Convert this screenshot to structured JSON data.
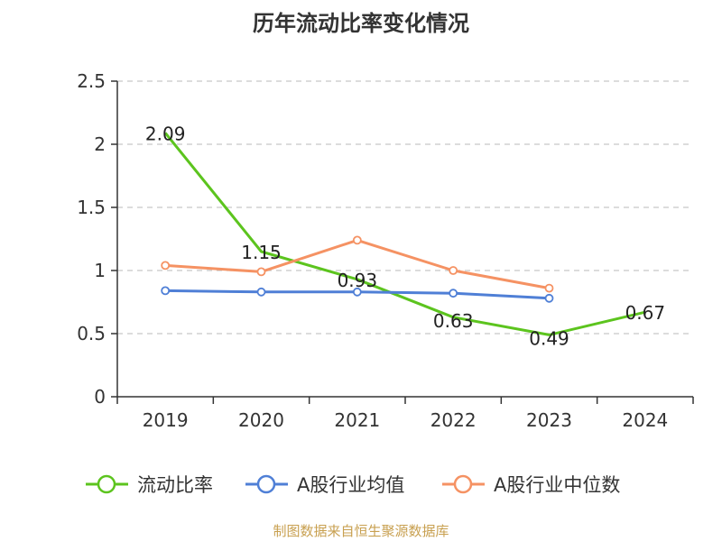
{
  "chart_data": {
    "type": "line",
    "title": "历年流动比率变化情况",
    "categories": [
      "2019",
      "2020",
      "2021",
      "2022",
      "2023",
      "2024"
    ],
    "ylim": [
      0,
      2.5
    ],
    "yticks": [
      "0",
      "0.5",
      "1",
      "1.5",
      "2",
      "2.5"
    ],
    "grid": true,
    "legend_position": "bottom",
    "series": [
      {
        "name": "流动比率",
        "color": "#5cc41e",
        "values": [
          2.09,
          1.15,
          0.93,
          0.63,
          0.49,
          0.67
        ],
        "labels": [
          "2.09",
          "1.15",
          "0.93",
          "0.63",
          "0.49",
          "0.67"
        ]
      },
      {
        "name": "A股行业均值",
        "color": "#4f7fd6",
        "values": [
          0.84,
          0.83,
          0.83,
          0.82,
          0.78,
          null
        ]
      },
      {
        "name": "A股行业中位数",
        "color": "#f59263",
        "values": [
          1.04,
          0.99,
          1.24,
          1.0,
          0.86,
          null
        ]
      }
    ],
    "source": "制图数据来自恒生聚源数据库"
  }
}
